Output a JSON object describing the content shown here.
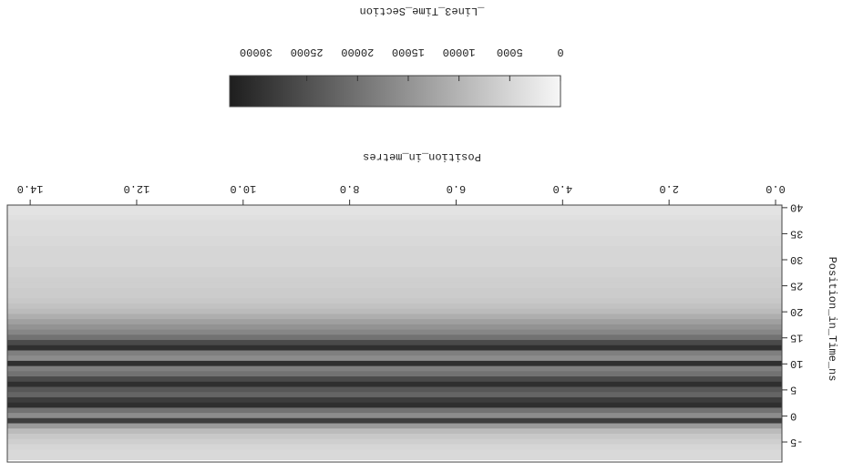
{
  "chart_data": {
    "type": "heatmap",
    "title": "_Line3_Time_Section",
    "x_label": "Position_in_metres",
    "y_label": "Position_in_Time_ns",
    "xlim": [
      -0.12,
      14.43
    ],
    "xticks": [
      {
        "value": 0,
        "label": "0.0"
      },
      {
        "value": 2,
        "label": "2.0"
      },
      {
        "value": 4,
        "label": "4.0"
      },
      {
        "value": 6,
        "label": "6.0"
      },
      {
        "value": 8,
        "label": "8.0"
      },
      {
        "value": 10,
        "label": "10.0"
      },
      {
        "value": 12,
        "label": "12.0"
      },
      {
        "value": 14,
        "label": "14.0"
      }
    ],
    "ylim": [
      -8.85,
      40.5
    ],
    "yticks": [
      -5,
      0,
      5,
      10,
      15,
      20,
      25,
      30,
      35,
      40
    ],
    "y": [
      40,
      39,
      38,
      37,
      36,
      35,
      34,
      33,
      32,
      31,
      30,
      29,
      28,
      27,
      26,
      25,
      24,
      23,
      22,
      21,
      20,
      19,
      18,
      17,
      16,
      15,
      14,
      13,
      12,
      11,
      10,
      9,
      8,
      7,
      6,
      5,
      4,
      3,
      2,
      1,
      0,
      -1,
      -2,
      -3,
      -4,
      -5,
      -6,
      -7,
      -8
    ],
    "values": [
      3000,
      3000,
      3500,
      4000,
      4000,
      4000,
      4500,
      4500,
      5000,
      5000,
      5000,
      5000,
      5500,
      5500,
      6000,
      6000,
      6500,
      6500,
      7000,
      8000,
      9000,
      11000,
      13000,
      15000,
      17000,
      20000,
      26000,
      30000,
      18000,
      16000,
      30000,
      18000,
      20000,
      26000,
      30000,
      24000,
      22000,
      28000,
      30000,
      20000,
      16000,
      28000,
      14000,
      9000,
      7000,
      6000,
      5000,
      4500,
      4500
    ],
    "colorbar": {
      "lim": [
        0,
        32600
      ],
      "ticks": [
        0,
        5000,
        10000,
        15000,
        20000,
        25000,
        30000
      ],
      "low_color": "#f7f7f7",
      "high_color": "#1e1e1e"
    }
  }
}
